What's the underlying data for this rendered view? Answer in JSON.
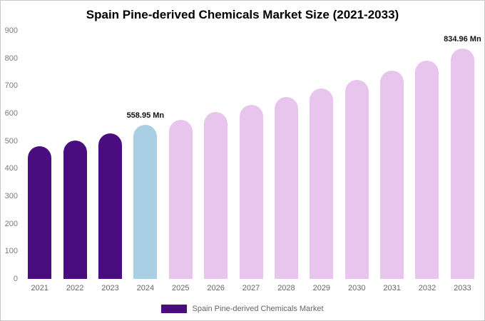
{
  "title": "Spain Pine-derived Chemicals Market Size (2021-2033)",
  "legend": {
    "label": "Spain Pine-derived Chemicals Market",
    "swatch_color": "#4a0d80"
  },
  "chart_data": {
    "type": "bar",
    "title": "Spain Pine-derived Chemicals Market Size (2021-2033)",
    "categories": [
      "2021",
      "2022",
      "2023",
      "2024",
      "2025",
      "2026",
      "2027",
      "2028",
      "2029",
      "2030",
      "2031",
      "2032",
      "2033"
    ],
    "values": [
      480,
      503,
      528,
      558.95,
      578,
      605,
      632,
      660,
      690,
      722,
      755,
      791,
      834.96
    ],
    "unit": "Mn",
    "xlabel": "",
    "ylabel": "",
    "ylim": [
      0,
      900
    ],
    "yticks": [
      0,
      100,
      200,
      300,
      400,
      500,
      600,
      700,
      800,
      900
    ],
    "grid": false,
    "legend_position": "bottom",
    "bar_roles": [
      "past",
      "past",
      "past",
      "current",
      "forecast",
      "forecast",
      "forecast",
      "forecast",
      "forecast",
      "forecast",
      "forecast",
      "forecast",
      "forecast"
    ],
    "colors": {
      "past": "#4a0d80",
      "current": "#a8cfe3",
      "forecast": "#e8c5ec"
    },
    "annotations": [
      {
        "category": "2024",
        "text": "558.95 Mn"
      },
      {
        "category": "2033",
        "text": "834.96 Mn"
      }
    ]
  }
}
